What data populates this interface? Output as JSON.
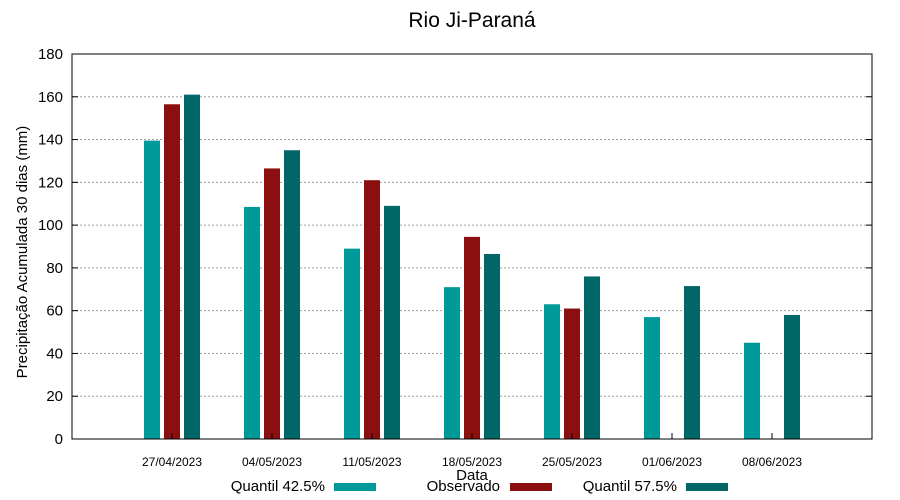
{
  "chart_data": {
    "type": "bar",
    "title": "Rio Ji-Paraná",
    "xlabel": "Data",
    "ylabel": "Precipitação Acumulada 30 dias (mm)",
    "ylim": [
      0,
      180
    ],
    "yticks": [
      0,
      20,
      40,
      60,
      80,
      100,
      120,
      140,
      160,
      180
    ],
    "grid": true,
    "legend_position": "bottom",
    "categories": [
      "27/04/2023",
      "04/05/2023",
      "11/05/2023",
      "18/05/2023",
      "25/05/2023",
      "01/06/2023",
      "08/06/2023"
    ],
    "series": [
      {
        "name": "Quantil 42.5%",
        "color": "#009999",
        "values": [
          139.5,
          108.5,
          89,
          71,
          63,
          57,
          45
        ]
      },
      {
        "name": "Observado",
        "color": "#8b0f0f",
        "values": [
          156.5,
          126.5,
          121,
          94.5,
          61,
          null,
          null
        ]
      },
      {
        "name": "Quantil 57.5%",
        "color": "#006666",
        "values": [
          161,
          135,
          109,
          86.5,
          76,
          71.5,
          58
        ]
      }
    ]
  }
}
